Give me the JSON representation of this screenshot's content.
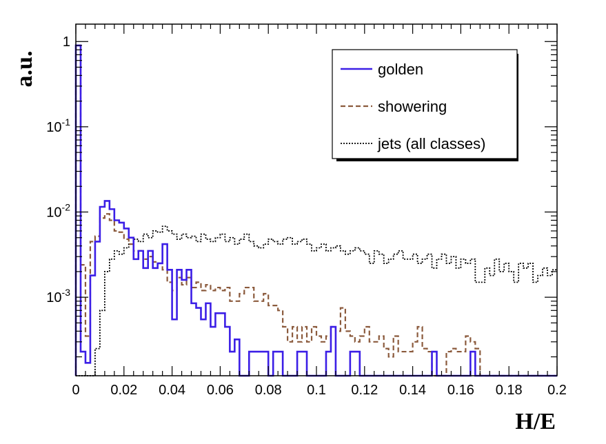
{
  "chart_data": {
    "type": "line",
    "subtype": "step-histogram",
    "xlabel": "H/E",
    "ylabel": "a.u.",
    "xlim": [
      0,
      0.2
    ],
    "ylim": [
      0.00012,
      1.6
    ],
    "yscale": "log",
    "bin_width": 0.002,
    "x_ticks": [
      0,
      0.02,
      0.04,
      0.06,
      0.08,
      0.1,
      0.12,
      0.14,
      0.16,
      0.18,
      0.2
    ],
    "x_tick_labels": [
      "0",
      "0.02",
      "0.04",
      "0.06",
      "0.08",
      "0.1",
      "0.12",
      "0.14",
      "0.16",
      "0.18",
      "0.2"
    ],
    "y_ticks": [
      0.001,
      0.01,
      0.1,
      1
    ],
    "y_tick_labels": [
      {
        "base": "10",
        "exp": "-3"
      },
      {
        "base": "10",
        "exp": "-2"
      },
      {
        "base": "10",
        "exp": "-1"
      },
      {
        "base": "1",
        "exp": ""
      }
    ],
    "legend_position": "top-right",
    "series": [
      {
        "name": "golden",
        "color": "#3b1ee6",
        "style": "solid",
        "x": [
          0.0,
          0.002,
          0.004,
          0.006,
          0.008,
          0.01,
          0.012,
          0.014,
          0.016,
          0.018,
          0.02,
          0.022,
          0.024,
          0.026,
          0.028,
          0.03,
          0.032,
          0.034,
          0.036,
          0.038,
          0.04,
          0.042,
          0.044,
          0.046,
          0.048,
          0.05,
          0.052,
          0.054,
          0.056,
          0.058,
          0.06,
          0.062,
          0.064,
          0.066,
          0.068,
          0.07,
          0.072,
          0.074,
          0.076,
          0.078,
          0.08,
          0.082,
          0.084,
          0.086,
          0.088,
          0.09,
          0.092,
          0.094,
          0.096,
          0.098,
          0.1,
          0.102,
          0.104,
          0.106,
          0.108,
          0.11,
          0.112,
          0.114,
          0.116,
          0.118,
          0.12,
          0.122,
          0.124,
          0.126,
          0.128,
          0.13,
          0.132,
          0.134,
          0.136,
          0.138,
          0.14,
          0.142,
          0.144,
          0.146,
          0.148,
          0.15,
          0.152,
          0.154,
          0.156,
          0.158,
          0.16,
          0.162,
          0.164,
          0.166,
          0.168,
          0.17,
          0.172,
          0.174,
          0.176,
          0.178,
          0.18,
          0.182,
          0.184,
          0.186,
          0.188,
          0.19,
          0.192,
          0.194,
          0.196,
          0.198
        ],
        "y": [
          0.9,
          0.00023,
          0.00017,
          0.0018,
          0.0045,
          0.0115,
          0.0135,
          0.0108,
          0.008,
          0.0075,
          0.0064,
          0.005,
          0.0028,
          0.0035,
          0.0022,
          0.0035,
          0.0022,
          0.0025,
          0.0042,
          0.0021,
          0.00055,
          0.0021,
          0.0016,
          0.0021,
          0.00085,
          0.00075,
          0.00055,
          0.00085,
          0.00045,
          0.00065,
          0.00065,
          0.00045,
          0.00023,
          0.00032,
          0.00012,
          0.00012,
          0.00023,
          0.00023,
          0.00023,
          0.00023,
          0.00012,
          0.00023,
          0.00023,
          0.00012,
          0.00012,
          0.00012,
          0.00023,
          0.00023,
          0.00012,
          0.00012,
          0.00012,
          0.00012,
          0.00023,
          0.00045,
          0.00012,
          0.00012,
          0.00012,
          0.00023,
          0.00023,
          0.00012,
          0.00012,
          0.00012,
          0.00012,
          0.00012,
          0.00012,
          0.00012,
          0.00012,
          0.00012,
          0.00012,
          0.00012,
          0.00012,
          0.00012,
          0.00012,
          0.00012,
          0.00023,
          0.00012,
          0.00012,
          0.00012,
          0.00012,
          0.00012,
          0.00012,
          0.00012,
          0.00023,
          0.00012,
          0.00012,
          0.00012,
          0.00012,
          0.00012,
          0.00012,
          0.00012,
          0.00012,
          0.00012,
          0.00012,
          0.00012,
          0.00012,
          0.00012,
          0.00012,
          0.00012,
          0.00012,
          0.00012
        ]
      },
      {
        "name": "showering",
        "color": "#8b5a3c",
        "style": "dashed",
        "x": [
          0.0,
          0.002,
          0.004,
          0.006,
          0.008,
          0.01,
          0.012,
          0.014,
          0.016,
          0.018,
          0.02,
          0.022,
          0.024,
          0.026,
          0.028,
          0.03,
          0.032,
          0.034,
          0.036,
          0.038,
          0.04,
          0.042,
          0.044,
          0.046,
          0.048,
          0.05,
          0.052,
          0.054,
          0.056,
          0.058,
          0.06,
          0.062,
          0.064,
          0.066,
          0.068,
          0.07,
          0.072,
          0.074,
          0.076,
          0.078,
          0.08,
          0.082,
          0.084,
          0.086,
          0.088,
          0.09,
          0.092,
          0.094,
          0.096,
          0.098,
          0.1,
          0.102,
          0.104,
          0.106,
          0.108,
          0.11,
          0.112,
          0.114,
          0.116,
          0.118,
          0.12,
          0.122,
          0.124,
          0.126,
          0.128,
          0.13,
          0.132,
          0.134,
          0.136,
          0.138,
          0.14,
          0.142,
          0.144,
          0.146,
          0.148,
          0.15,
          0.152,
          0.154,
          0.156,
          0.158,
          0.16,
          0.162,
          0.164,
          0.166,
          0.168,
          0.17,
          0.172,
          0.174,
          0.176,
          0.178,
          0.18,
          0.182,
          0.184,
          0.186,
          0.188,
          0.19,
          0.192,
          0.194,
          0.196,
          0.198
        ],
        "y": [
          0.9,
          0.0024,
          0.00035,
          0.0045,
          0.0052,
          0.0085,
          0.0095,
          0.008,
          0.006,
          0.0058,
          0.0048,
          0.0042,
          0.0035,
          0.0035,
          0.0028,
          0.003,
          0.0026,
          0.0025,
          0.0021,
          0.0015,
          0.0012,
          0.0017,
          0.0014,
          0.0017,
          0.0013,
          0.0015,
          0.0012,
          0.0014,
          0.0012,
          0.0013,
          0.0012,
          0.0013,
          0.0009,
          0.0009,
          0.0011,
          0.0013,
          0.0013,
          0.0009,
          0.0009,
          0.0011,
          0.0008,
          0.0008,
          0.0007,
          0.00045,
          0.0003,
          0.00045,
          0.0003,
          0.00045,
          0.0003,
          0.00045,
          0.00035,
          0.0003,
          0.00035,
          0.00045,
          0.0004,
          0.00075,
          0.0004,
          0.00035,
          0.0003,
          0.00035,
          0.00045,
          0.0003,
          0.0003,
          0.00035,
          0.00025,
          0.0002,
          0.00035,
          0.00023,
          0.00023,
          0.00023,
          0.0003,
          0.00045,
          0.00025,
          0.00023,
          0.00012,
          0.00012,
          0.00012,
          0.00023,
          0.00025,
          0.00023,
          0.00023,
          0.00035,
          0.0003,
          0.00025,
          0.00012,
          0.00012,
          0.00012,
          0.00012,
          0.00012,
          0.00012,
          0.00012,
          0.00012,
          0.00012,
          0.00012,
          0.00012,
          0.00012,
          0.00012,
          0.00012,
          0.00012,
          0.00012
        ]
      },
      {
        "name": "jets (all classes)",
        "color": "#000000",
        "style": "dotted",
        "x": [
          0.0,
          0.002,
          0.004,
          0.006,
          0.008,
          0.01,
          0.012,
          0.014,
          0.016,
          0.018,
          0.02,
          0.022,
          0.024,
          0.026,
          0.028,
          0.03,
          0.032,
          0.034,
          0.036,
          0.038,
          0.04,
          0.042,
          0.044,
          0.046,
          0.048,
          0.05,
          0.052,
          0.054,
          0.056,
          0.058,
          0.06,
          0.062,
          0.064,
          0.066,
          0.068,
          0.07,
          0.072,
          0.074,
          0.076,
          0.078,
          0.08,
          0.082,
          0.084,
          0.086,
          0.088,
          0.09,
          0.092,
          0.094,
          0.096,
          0.098,
          0.1,
          0.102,
          0.104,
          0.106,
          0.108,
          0.11,
          0.112,
          0.114,
          0.116,
          0.118,
          0.12,
          0.122,
          0.124,
          0.126,
          0.128,
          0.13,
          0.132,
          0.134,
          0.136,
          0.138,
          0.14,
          0.142,
          0.144,
          0.146,
          0.148,
          0.15,
          0.152,
          0.154,
          0.156,
          0.158,
          0.16,
          0.162,
          0.164,
          0.166,
          0.168,
          0.17,
          0.172,
          0.174,
          0.176,
          0.178,
          0.18,
          0.182,
          0.184,
          0.186,
          0.188,
          0.19,
          0.192,
          0.194,
          0.196,
          0.198
        ],
        "y": [
          0.00012,
          0.00012,
          0.00012,
          0.00012,
          0.00025,
          0.0007,
          0.002,
          0.0028,
          0.0035,
          0.0032,
          0.0038,
          0.0042,
          0.0048,
          0.0045,
          0.0055,
          0.005,
          0.006,
          0.0058,
          0.0068,
          0.006,
          0.0055,
          0.0048,
          0.0055,
          0.005,
          0.0052,
          0.0045,
          0.0055,
          0.0048,
          0.0045,
          0.005,
          0.0055,
          0.0045,
          0.005,
          0.0042,
          0.0048,
          0.0055,
          0.0045,
          0.004,
          0.0038,
          0.0042,
          0.0048,
          0.0045,
          0.0042,
          0.0048,
          0.005,
          0.0042,
          0.0045,
          0.0048,
          0.0042,
          0.0035,
          0.0038,
          0.0042,
          0.0035,
          0.0038,
          0.004,
          0.0035,
          0.0032,
          0.0035,
          0.0038,
          0.0035,
          0.0032,
          0.0025,
          0.0035,
          0.0032,
          0.0025,
          0.0028,
          0.0032,
          0.0035,
          0.0028,
          0.0028,
          0.0032,
          0.0025,
          0.0028,
          0.0032,
          0.0022,
          0.0028,
          0.0032,
          0.0025,
          0.003,
          0.0022,
          0.0028,
          0.0025,
          0.0028,
          0.0015,
          0.0015,
          0.0022,
          0.0018,
          0.0028,
          0.002,
          0.0025,
          0.002,
          0.0015,
          0.0025,
          0.0022,
          0.0025,
          0.0015,
          0.0018,
          0.0022,
          0.0018,
          0.0021
        ]
      }
    ]
  }
}
